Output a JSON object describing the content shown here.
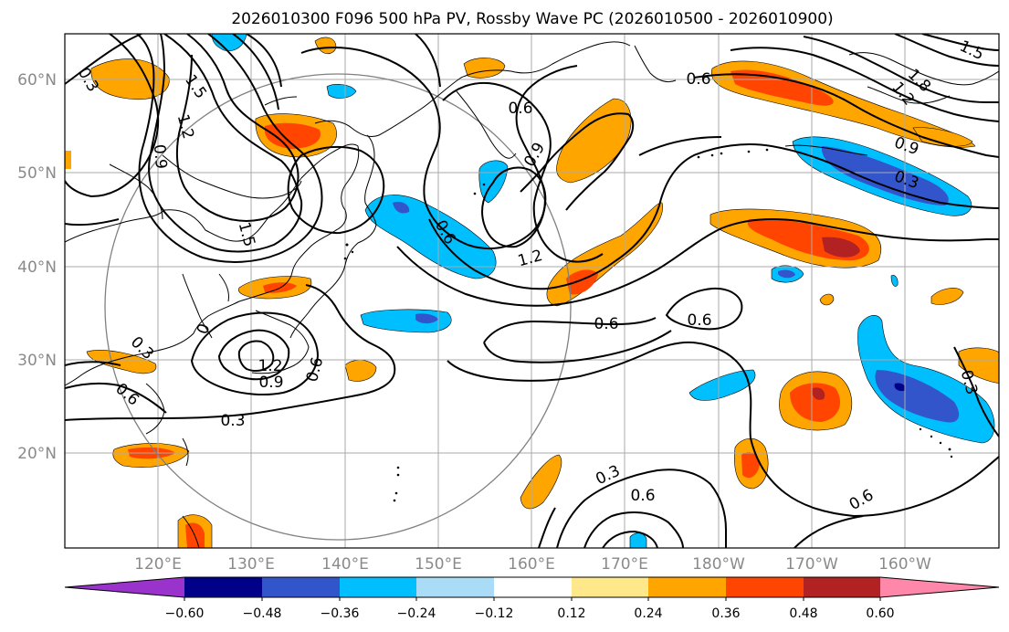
{
  "title": "2026010300 F096 500 hPa PV, Rossby Wave PC (2026010500 - 2026010900)",
  "map": {
    "lon_labels": [
      "120°E",
      "130°E",
      "140°E",
      "150°E",
      "160°E",
      "170°E",
      "180°W",
      "170°W",
      "160°W"
    ],
    "lat_labels": [
      "60°N",
      "50°N",
      "40°N",
      "30°N",
      "20°N"
    ],
    "grid_color": "#aaaaaa",
    "label_color": "#8a8a8a"
  },
  "contour_labels": [
    {
      "id": "c1",
      "text": "0.3"
    },
    {
      "id": "c2",
      "text": "1.5"
    },
    {
      "id": "c3",
      "text": "1.2"
    },
    {
      "id": "c4",
      "text": "0.9"
    },
    {
      "id": "c5",
      "text": "1.5"
    },
    {
      "id": "c6",
      "text": "0.6"
    },
    {
      "id": "c7",
      "text": "0.6"
    },
    {
      "id": "c8",
      "text": "0.9"
    },
    {
      "id": "c9",
      "text": "1.2"
    },
    {
      "id": "c10",
      "text": "0.6"
    },
    {
      "id": "c11",
      "text": "0.6"
    },
    {
      "id": "c12",
      "text": "0.6"
    },
    {
      "id": "c13",
      "text": "1.5"
    },
    {
      "id": "c14",
      "text": "1.8"
    },
    {
      "id": "c15",
      "text": "1.2"
    },
    {
      "id": "c16",
      "text": "0.9"
    },
    {
      "id": "c17",
      "text": "0.3"
    },
    {
      "id": "c18",
      "text": "0.3"
    },
    {
      "id": "c19",
      "text": "0.6"
    },
    {
      "id": "c20",
      "text": "1.2"
    },
    {
      "id": "c21",
      "text": "0.9"
    },
    {
      "id": "c22",
      "text": "0.6"
    },
    {
      "id": "c23",
      "text": "0.3"
    },
    {
      "id": "c24",
      "text": "0.3"
    },
    {
      "id": "c25",
      "text": "0.6"
    },
    {
      "id": "c26",
      "text": "0.6"
    },
    {
      "id": "c27",
      "text": "0.3"
    },
    {
      "id": "c28",
      "text": "0"
    }
  ],
  "colorbar": {
    "ticks": [
      "−0.60",
      "−0.48",
      "−0.36",
      "−0.24",
      "−0.12",
      "0.12",
      "0.24",
      "0.36",
      "0.48",
      "0.60"
    ],
    "colors": {
      "lt_m060": "#9933cc",
      "m060_m048": "#000088",
      "m048_m036": "#3355cc",
      "m036_m024": "#00bfff",
      "m024_m012": "#aadcf8",
      "m012_012": "#ffffff",
      "p012_024": "#ffe88a",
      "p024_036": "#ffa500",
      "p036_048": "#ff4500",
      "p048_060": "#b22222",
      "gt_060": "#ff88aa"
    }
  }
}
